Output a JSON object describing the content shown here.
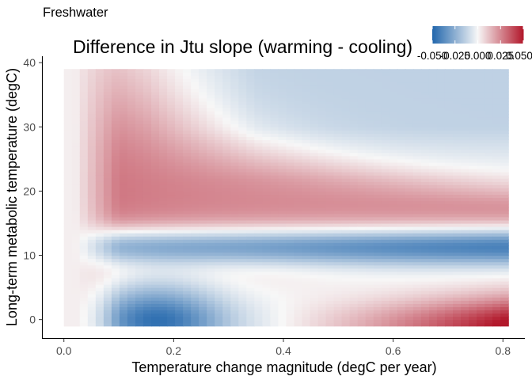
{
  "chart_data": {
    "type": "heatmap",
    "panel_label": "Freshwater",
    "title": "Difference in Jtu slope (warming - cooling)",
    "xlabel": "Temperature change magnitude (degC per year)",
    "ylabel": "Long-term metabolic temperature (degC)",
    "x_range": [
      0.0,
      0.81
    ],
    "y_range": [
      -1,
      39
    ],
    "xlim": [
      -0.04,
      0.84
    ],
    "ylim": [
      -3,
      41
    ],
    "x_ticks": [
      0.0,
      0.2,
      0.4,
      0.6,
      0.8
    ],
    "x_tick_labels": [
      "0.0",
      "0.2",
      "0.4",
      "0.6",
      "0.8"
    ],
    "y_ticks": [
      0,
      10,
      20,
      30,
      40
    ],
    "y_tick_labels": [
      "0",
      "10",
      "20",
      "30",
      "40"
    ],
    "grid": false,
    "color_scale": {
      "low_color": "#2166ac",
      "mid_color": "#f7f7f7",
      "high_color": "#b2182b",
      "limits": [
        -0.05,
        0.05
      ],
      "breaks": [
        -0.05,
        -0.025,
        0.0,
        0.025,
        0.05
      ],
      "break_labels": [
        "-0.050",
        "-0.025",
        "0.000",
        "0.025",
        "0.050"
      ]
    },
    "legend_position": "top-right",
    "x_cols": 56,
    "y_rows": 80,
    "surface_description": "Warming-minus-cooling Jtu slope difference over (magnitude, metabolic temperature). Positive (red) band above ~15-16 degC narrowing toward ~17 degC at high magnitudes; strong negative (blue) band at ~8-14 degC; negative low-temperature region at small magnitudes (0.1-0.3) shifting to positive (red) at high magnitudes (>0.4) below ~5 degC; weakly negative (light blue) region at high temperature and high magnitude."
  }
}
